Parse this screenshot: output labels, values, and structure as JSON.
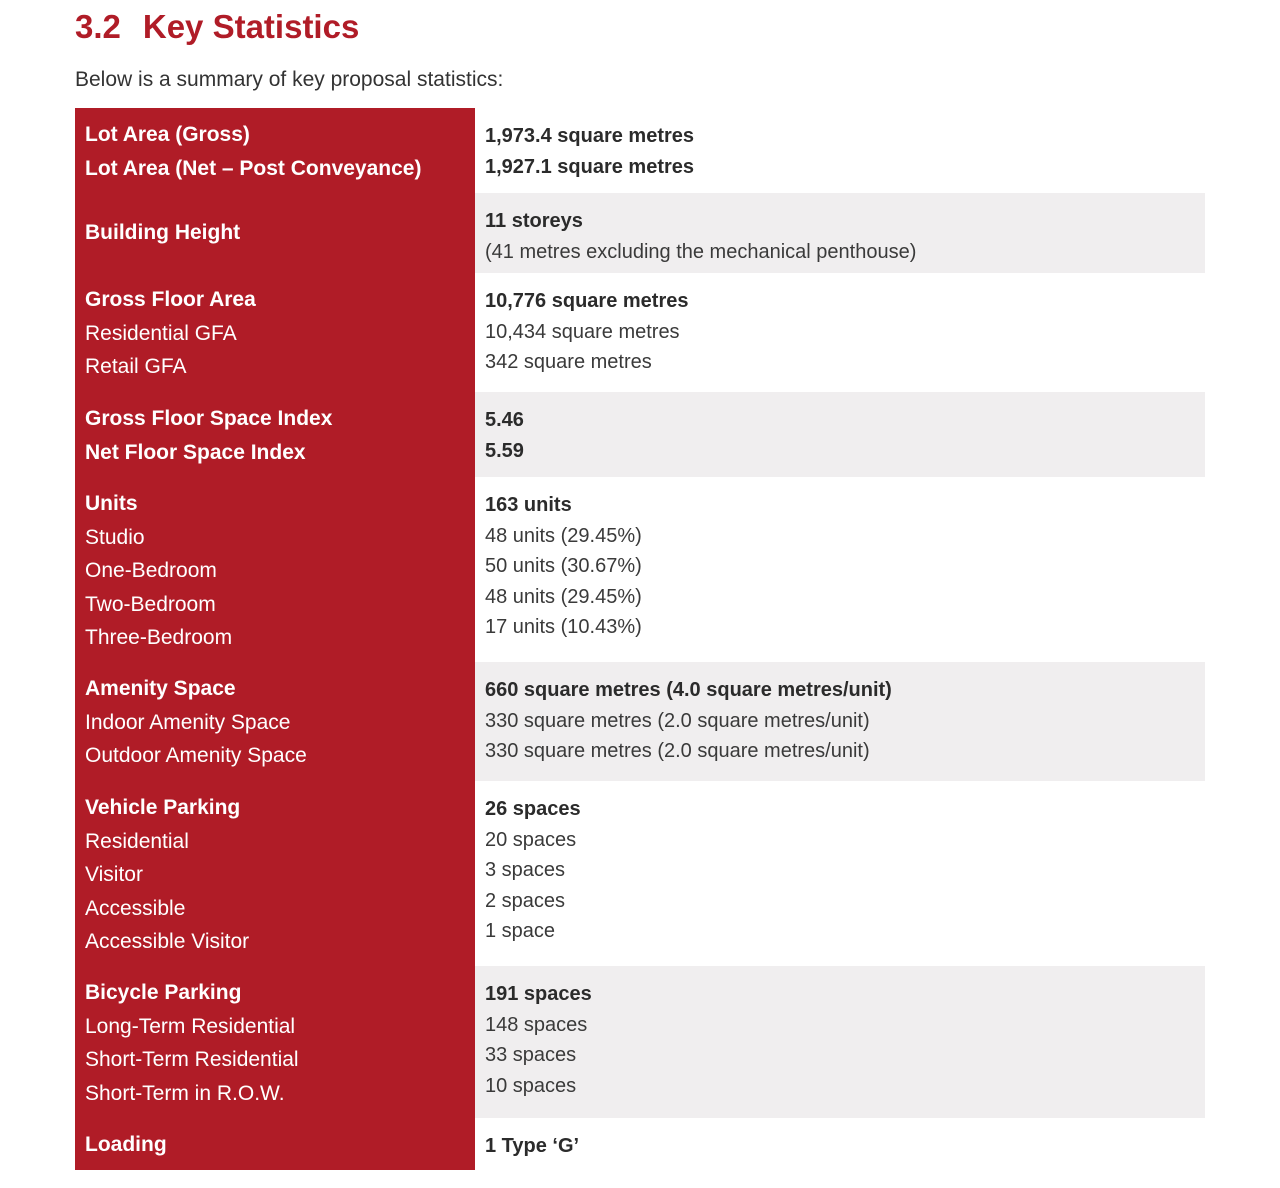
{
  "section": {
    "number": "3.2",
    "title": "Key Statistics"
  },
  "intro": "Below is a summary of key proposal statistics:",
  "colors": {
    "accent": "#b01c27",
    "band": "#f0eeef"
  },
  "rows": [
    {
      "labels": [
        {
          "t": "Lot Area (Gross)",
          "bold": true
        },
        {
          "t": "Lot Area (Net – Post Conveyance)",
          "bold": true
        }
      ],
      "values": [
        {
          "t": "1,973.4 square metres",
          "bold": true
        },
        {
          "t": "1,927.1 square metres",
          "bold": true
        }
      ]
    },
    {
      "labels": [
        {
          "t": "Building Height",
          "bold": true
        }
      ],
      "values": [
        {
          "t": "11 storeys",
          "bold": true
        },
        {
          "t": "(41 metres excluding the mechanical penthouse)",
          "bold": false
        }
      ]
    },
    {
      "labels": [
        {
          "t": "Gross Floor Area",
          "bold": true
        },
        {
          "t": "Residential GFA",
          "bold": false
        },
        {
          "t": "Retail GFA",
          "bold": false
        }
      ],
      "values": [
        {
          "t": "10,776 square metres",
          "bold": true
        },
        {
          "t": "10,434 square metres",
          "bold": false
        },
        {
          "t": "342 square metres",
          "bold": false
        }
      ]
    },
    {
      "labels": [
        {
          "t": "Gross Floor Space Index",
          "bold": true
        },
        {
          "t": "Net Floor Space Index",
          "bold": true
        }
      ],
      "values": [
        {
          "t": "5.46",
          "bold": true
        },
        {
          "t": "5.59",
          "bold": true
        }
      ]
    },
    {
      "labels": [
        {
          "t": "Units",
          "bold": true
        },
        {
          "t": "Studio",
          "bold": false
        },
        {
          "t": "One-Bedroom",
          "bold": false
        },
        {
          "t": "Two-Bedroom",
          "bold": false
        },
        {
          "t": "Three-Bedroom",
          "bold": false
        }
      ],
      "values": [
        {
          "t": "163 units",
          "bold": true
        },
        {
          "t": "48 units (29.45%)",
          "bold": false
        },
        {
          "t": "50 units (30.67%)",
          "bold": false
        },
        {
          "t": "48 units (29.45%)",
          "bold": false
        },
        {
          "t": "17 units (10.43%)",
          "bold": false
        }
      ]
    },
    {
      "labels": [
        {
          "t": "Amenity Space",
          "bold": true
        },
        {
          "t": "Indoor Amenity Space",
          "bold": false
        },
        {
          "t": "Outdoor Amenity Space",
          "bold": false
        }
      ],
      "values": [
        {
          "t": "660 square metres (4.0 square metres/unit)",
          "bold": true
        },
        {
          "t": "330 square metres (2.0 square metres/unit)",
          "bold": false
        },
        {
          "t": "330 square metres (2.0 square metres/unit)",
          "bold": false
        }
      ]
    },
    {
      "labels": [
        {
          "t": "Vehicle Parking",
          "bold": true
        },
        {
          "t": "Residential",
          "bold": false
        },
        {
          "t": "Visitor",
          "bold": false
        },
        {
          "t": "Accessible",
          "bold": false
        },
        {
          "t": "Accessible Visitor",
          "bold": false
        }
      ],
      "values": [
        {
          "t": "26 spaces",
          "bold": true
        },
        {
          "t": "20 spaces",
          "bold": false
        },
        {
          "t": "3 spaces",
          "bold": false
        },
        {
          "t": "2 spaces",
          "bold": false
        },
        {
          "t": "1 space",
          "bold": false
        }
      ]
    },
    {
      "labels": [
        {
          "t": "Bicycle Parking",
          "bold": true
        },
        {
          "t": "Long-Term Residential",
          "bold": false
        },
        {
          "t": "Short-Term Residential",
          "bold": false
        },
        {
          "t": "Short-Term in R.O.W.",
          "bold": false
        }
      ],
      "values": [
        {
          "t": "191 spaces",
          "bold": true
        },
        {
          "t": "148 spaces",
          "bold": false
        },
        {
          "t": "33 spaces",
          "bold": false
        },
        {
          "t": "10 spaces",
          "bold": false
        }
      ]
    },
    {
      "labels": [
        {
          "t": "Loading",
          "bold": true
        }
      ],
      "values": [
        {
          "t": "1 Type ‘G’",
          "bold": true
        }
      ]
    }
  ]
}
